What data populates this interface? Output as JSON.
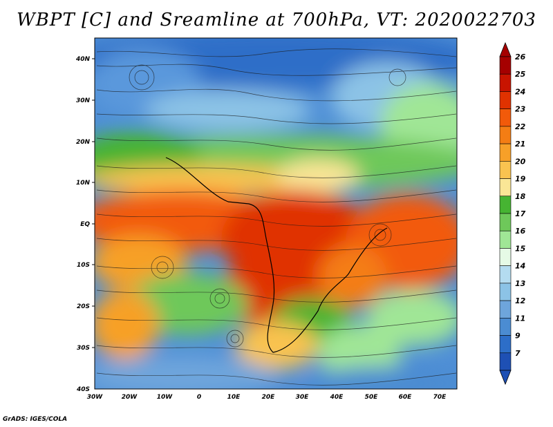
{
  "title": "WBPT [C] and Sreamline at 700hPa, VT: 2020022703",
  "credit": "GrADS: IGES/COLA",
  "map": {
    "lat_labels": [
      "40N",
      "30N",
      "20N",
      "10N",
      "EQ",
      "10S",
      "20S",
      "30S",
      "40S"
    ],
    "lon_labels": [
      "30W",
      "20W",
      "10W",
      "0",
      "10E",
      "20E",
      "30E",
      "40E",
      "50E",
      "60E",
      "70E"
    ]
  },
  "colorbar": {
    "labels": [
      "26",
      "25",
      "24",
      "23",
      "22",
      "21",
      "20",
      "19",
      "18",
      "17",
      "16",
      "15",
      "14",
      "13",
      "12",
      "11",
      "9",
      "7"
    ],
    "colors": [
      "#a50000",
      "#c81400",
      "#e03200",
      "#f25a0a",
      "#f47d14",
      "#f7a028",
      "#f9c350",
      "#fae696",
      "#46b432",
      "#6ec85a",
      "#a0e696",
      "#e6fae6",
      "#b4dcf0",
      "#8cc3e6",
      "#6ea5dc",
      "#4b8cd2",
      "#2d6ec8",
      "#1e50b4"
    ]
  }
}
